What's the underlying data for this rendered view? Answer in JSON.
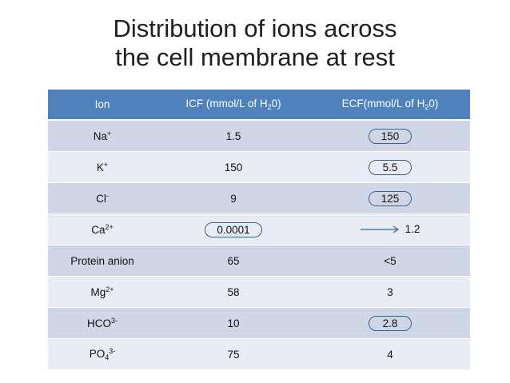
{
  "title": {
    "line1": "Distribution of ions across",
    "line2": "the cell membrane at rest"
  },
  "columns": {
    "ion": "Ion",
    "icf_main": "ICF (mmol/L of H",
    "icf_sub": "2",
    "icf_tail": "0)",
    "ecf_main": "ECF(mmol/L of H",
    "ecf_sub": "2",
    "ecf_tail": "0)"
  },
  "rows": [
    {
      "ion": "Na",
      "sup": "+",
      "icf": "1.5",
      "ecf": "150"
    },
    {
      "ion": "K",
      "sup": "+",
      "icf": "150",
      "ecf": "5.5"
    },
    {
      "ion": "Cl",
      "sup": "-",
      "icf": "9",
      "ecf": "125"
    },
    {
      "ion": "Ca",
      "sup": "2+",
      "icf": "0.0001",
      "ecf": "1.2"
    },
    {
      "ion": "Protein anion",
      "icf": "65",
      "ecf": "<5"
    },
    {
      "ion": "Mg",
      "sup": "2+",
      "icf": "58",
      "ecf": "3"
    },
    {
      "ion": "HCO",
      "sup": "3-",
      "icf": "10",
      "ecf": "2.8"
    },
    {
      "ion": "PO",
      "sub": "4",
      "sup": "3-",
      "icf": "75",
      "ecf": "4"
    }
  ],
  "colors": {
    "header": "#4f81bd",
    "row_dark": "#cfd7e6",
    "row_light": "#e8ecf4",
    "circle": "#3b5f8f"
  },
  "annotations": {
    "arrow_icon": "right-arrow-icon"
  }
}
